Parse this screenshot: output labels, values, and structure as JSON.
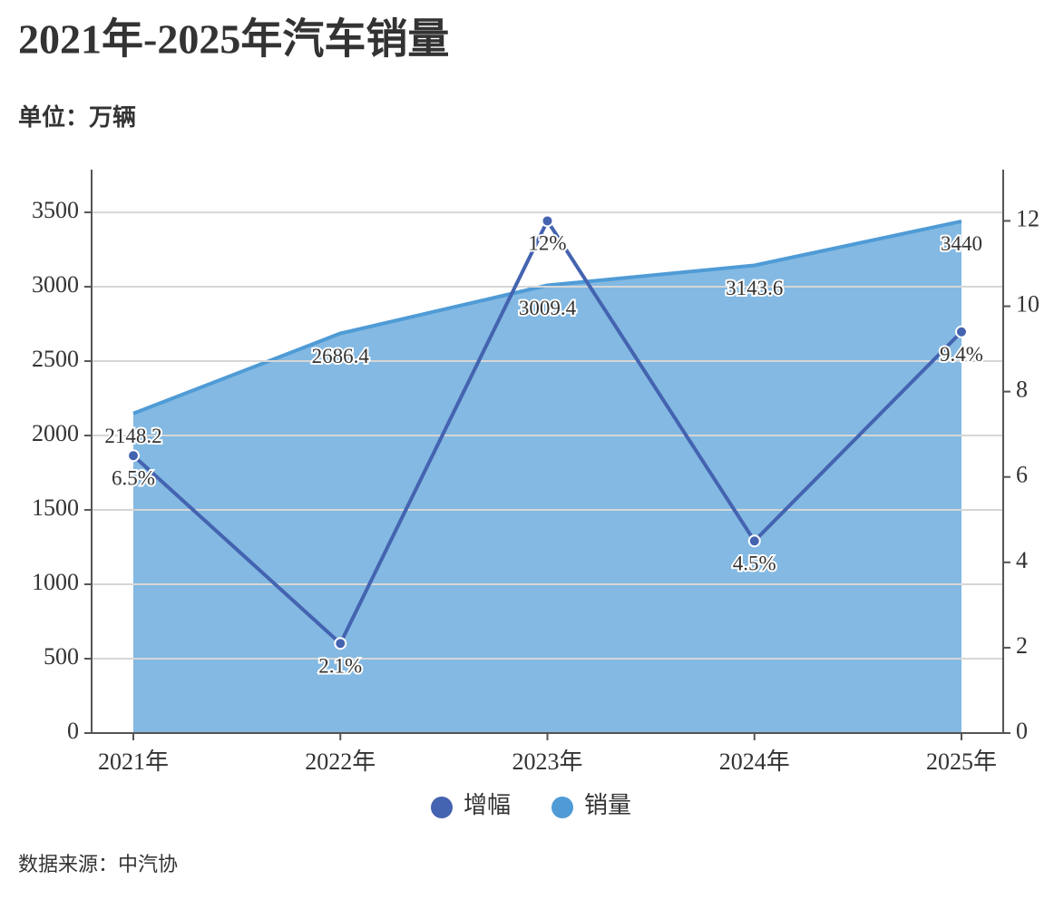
{
  "chart_data": {
    "type": "line",
    "title": "2021年-2025年汽车销量",
    "subtitle": "单位：万辆",
    "source": "数据来源：中汽协",
    "categories": [
      "2021年",
      "2022年",
      "2023年",
      "2024年",
      "2025年"
    ],
    "series": [
      {
        "name": "增幅",
        "type": "line",
        "axis": "y2",
        "color": "#4463b0",
        "values": [
          6.5,
          2.1,
          12,
          4.5,
          9.4
        ],
        "value_labels": [
          "6.5%",
          "2.1%",
          "12%",
          "4.5%",
          "9.4%"
        ]
      },
      {
        "name": "销量",
        "type": "area",
        "color": "#4f9bd6",
        "values": [
          2148.2,
          2686.4,
          3009.4,
          3143.6,
          3440
        ]
      }
    ],
    "ylim": [
      0,
      3787
    ],
    "yticks": [
      0,
      500,
      1000,
      1500,
      2000,
      2500,
      3000,
      3500
    ],
    "y2lim": [
      0,
      13.2
    ],
    "y2ticks": [
      0,
      2,
      4,
      6,
      8,
      10,
      12
    ],
    "grid": true,
    "legend": "bottom"
  }
}
